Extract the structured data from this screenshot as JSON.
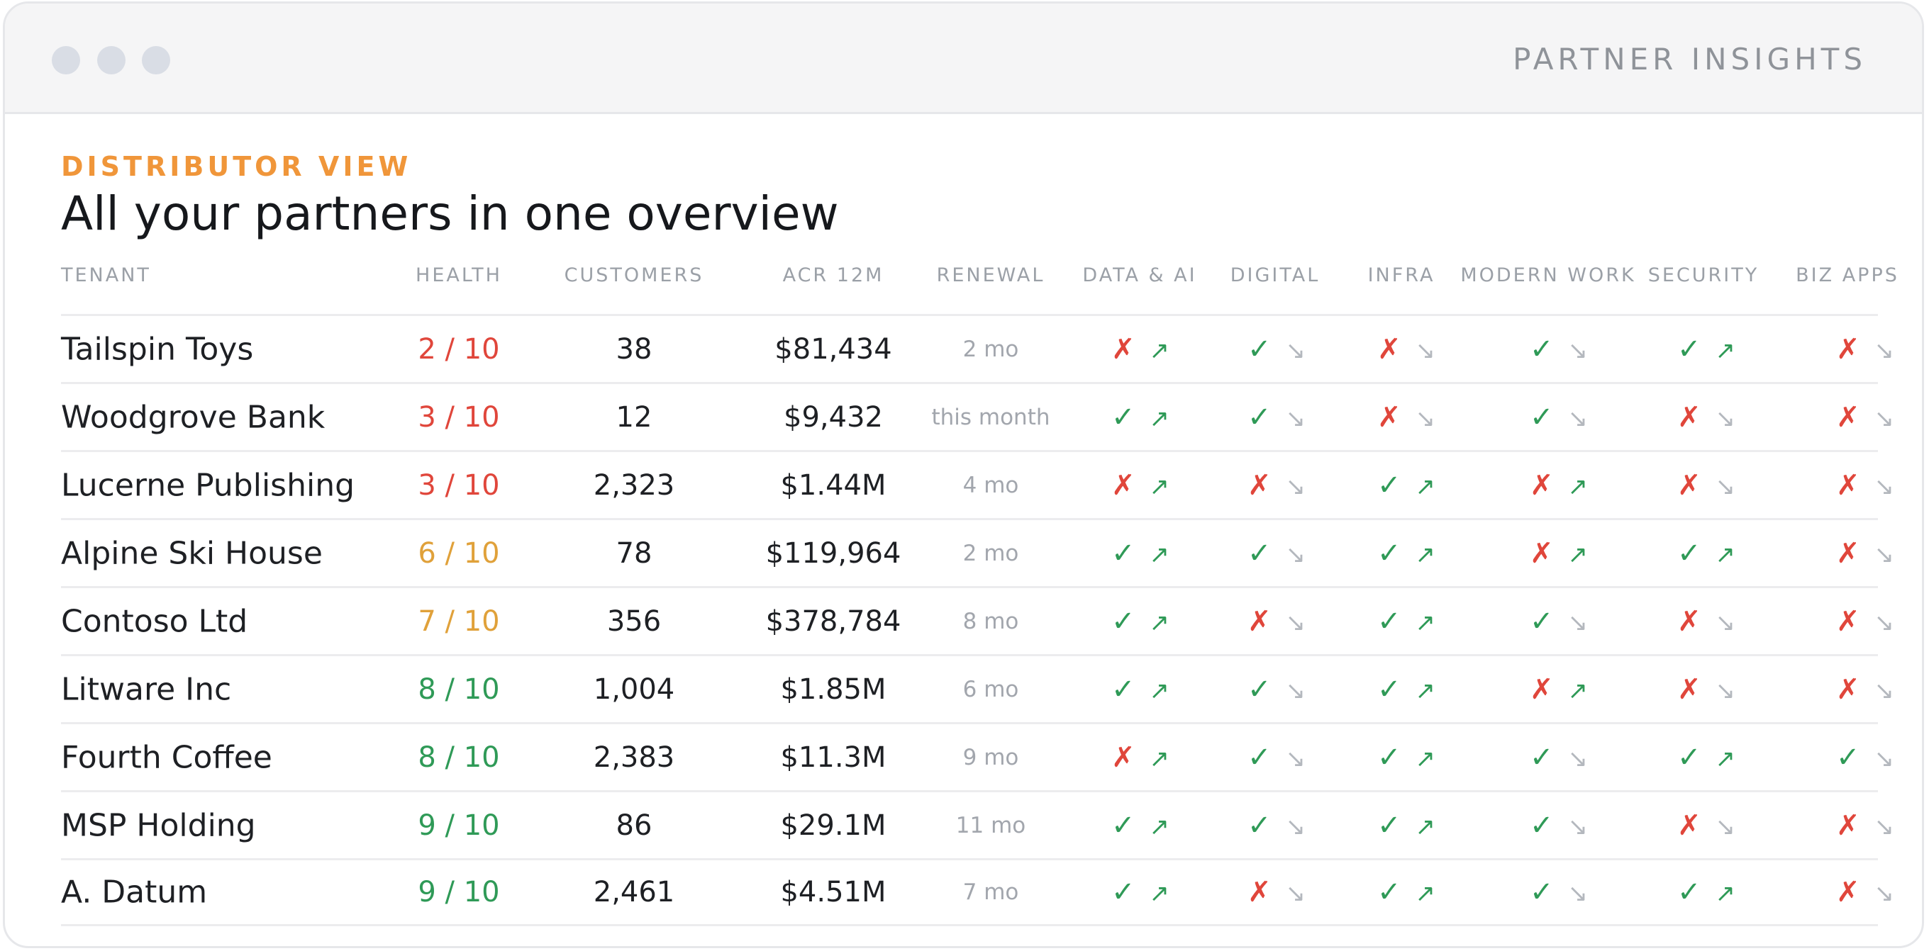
{
  "window": {
    "title": "PARTNER INSIGHTS"
  },
  "page": {
    "eyebrow": "DISTRIBUTOR VIEW",
    "title": "All your partners in one overview"
  },
  "colors": {
    "good": "#2f9a57",
    "bad": "#e0463b",
    "warn": "#e0a13a",
    "muted": "#b4b8be",
    "accent": "#f0963a"
  },
  "table": {
    "headers": {
      "tenant": "TENANT",
      "health": "HEALTH",
      "customers": "CUSTOMERS",
      "acr": "ACR 12M",
      "renewal": "RENEWAL",
      "data_ai": "DATA & AI",
      "digital": "DIGITAL",
      "infra": "INFRA",
      "modern_work": "MODERN WORK",
      "security": "SECURITY",
      "biz_apps": "BIZ APPS"
    },
    "icons": {
      "check": "✓",
      "cross": "✗",
      "up": "↗",
      "down": "↘"
    },
    "rows": [
      {
        "tenant": "Tailspin Toys",
        "health": "2 / 10",
        "health_level": "bad",
        "customers": "38",
        "acr": "$81,434",
        "renewal": "2 mo",
        "solutions": [
          [
            "cross",
            "up"
          ],
          [
            "check",
            "down"
          ],
          [
            "cross",
            "down"
          ],
          [
            "check",
            "down"
          ],
          [
            "check",
            "up"
          ],
          [
            "cross",
            "down"
          ]
        ]
      },
      {
        "tenant": "Woodgrove Bank",
        "health": "3 / 10",
        "health_level": "bad",
        "customers": "12",
        "acr": "$9,432",
        "renewal": "this month",
        "solutions": [
          [
            "check",
            "up"
          ],
          [
            "check",
            "down"
          ],
          [
            "cross",
            "down"
          ],
          [
            "check",
            "down"
          ],
          [
            "cross",
            "down"
          ],
          [
            "cross",
            "down"
          ]
        ]
      },
      {
        "tenant": "Lucerne Publishing",
        "health": "3 / 10",
        "health_level": "bad",
        "customers": "2,323",
        "acr": "$1.44M",
        "renewal": "4 mo",
        "solutions": [
          [
            "cross",
            "up"
          ],
          [
            "cross",
            "down"
          ],
          [
            "check",
            "up"
          ],
          [
            "cross",
            "up"
          ],
          [
            "cross",
            "down"
          ],
          [
            "cross",
            "down"
          ]
        ]
      },
      {
        "tenant": "Alpine Ski House",
        "health": "6 / 10",
        "health_level": "warn",
        "customers": "78",
        "acr": "$119,964",
        "renewal": "2 mo",
        "solutions": [
          [
            "check",
            "up"
          ],
          [
            "check",
            "down"
          ],
          [
            "check",
            "up"
          ],
          [
            "cross",
            "up"
          ],
          [
            "check",
            "up"
          ],
          [
            "cross",
            "down"
          ]
        ]
      },
      {
        "tenant": "Contoso Ltd",
        "health": "7 / 10",
        "health_level": "warn",
        "customers": "356",
        "acr": "$378,784",
        "renewal": "8 mo",
        "solutions": [
          [
            "check",
            "up"
          ],
          [
            "cross",
            "down"
          ],
          [
            "check",
            "up"
          ],
          [
            "check",
            "down"
          ],
          [
            "cross",
            "down"
          ],
          [
            "cross",
            "down"
          ]
        ]
      },
      {
        "tenant": "Litware Inc",
        "health": "8 / 10",
        "health_level": "good",
        "customers": "1,004",
        "acr": "$1.85M",
        "renewal": "6 mo",
        "solutions": [
          [
            "check",
            "up"
          ],
          [
            "check",
            "down"
          ],
          [
            "check",
            "up"
          ],
          [
            "cross",
            "up"
          ],
          [
            "cross",
            "down"
          ],
          [
            "cross",
            "down"
          ]
        ]
      },
      {
        "tenant": "Fourth Coffee",
        "health": "8 / 10",
        "health_level": "good",
        "customers": "2,383",
        "acr": "$11.3M",
        "renewal": "9 mo",
        "solutions": [
          [
            "cross",
            "up"
          ],
          [
            "check",
            "down"
          ],
          [
            "check",
            "up"
          ],
          [
            "check",
            "down"
          ],
          [
            "check",
            "up"
          ],
          [
            "check",
            "down"
          ]
        ]
      },
      {
        "tenant": "MSP Holding",
        "health": "9 / 10",
        "health_level": "good",
        "customers": "86",
        "acr": "$29.1M",
        "renewal": "11 mo",
        "solutions": [
          [
            "check",
            "up"
          ],
          [
            "check",
            "down"
          ],
          [
            "check",
            "up"
          ],
          [
            "check",
            "down"
          ],
          [
            "cross",
            "down"
          ],
          [
            "cross",
            "down"
          ]
        ]
      },
      {
        "tenant": "A. Datum",
        "health": "9 / 10",
        "health_level": "good",
        "customers": "2,461",
        "acr": "$4.51M",
        "renewal": "7 mo",
        "solutions": [
          [
            "check",
            "up"
          ],
          [
            "cross",
            "down"
          ],
          [
            "check",
            "up"
          ],
          [
            "check",
            "down"
          ],
          [
            "check",
            "up"
          ],
          [
            "cross",
            "down"
          ]
        ]
      }
    ]
  }
}
